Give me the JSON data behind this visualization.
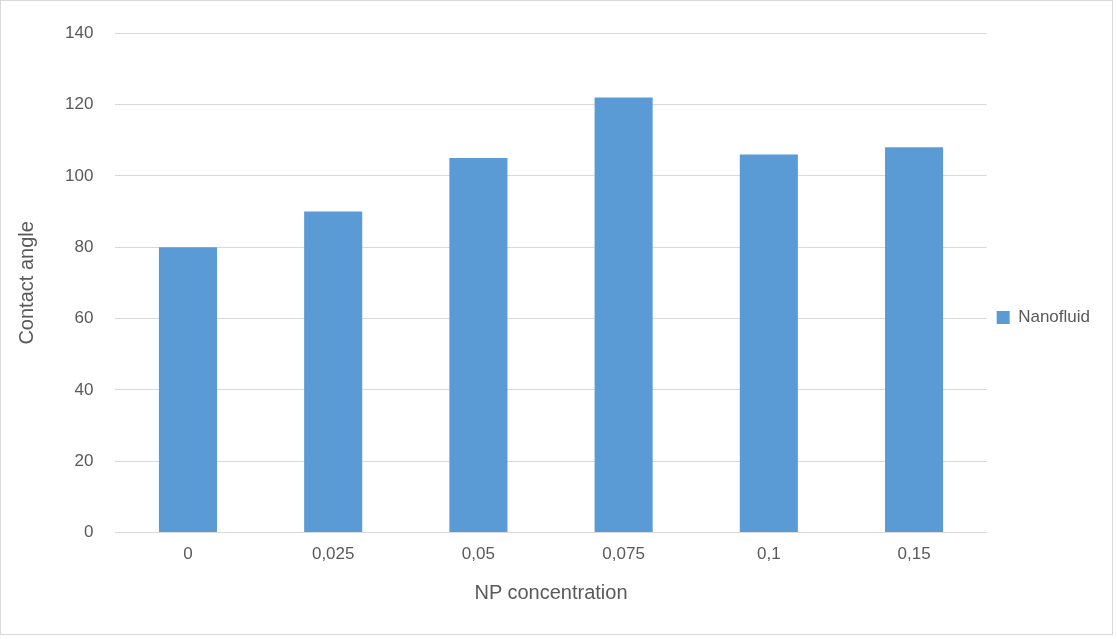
{
  "chart_data": {
    "type": "bar",
    "xlabel": "NP concentration",
    "ylabel": "Contact angle",
    "categories": [
      "0",
      "0,025",
      "0,05",
      "0,075",
      "0,1",
      "0,15"
    ],
    "series": [
      {
        "name": "Nanofluid",
        "color": "#5b9bd5",
        "values": [
          80,
          90,
          105,
          122,
          106,
          108
        ]
      }
    ],
    "ylim": [
      0,
      140
    ],
    "yticks": [
      0,
      20,
      40,
      60,
      80,
      100,
      120,
      140
    ],
    "grid": "y",
    "legend": "right"
  }
}
